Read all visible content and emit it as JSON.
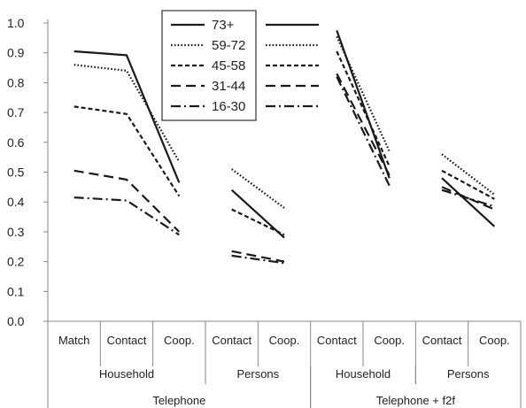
{
  "chart_data": {
    "type": "line",
    "title": "",
    "xlabel": "",
    "ylabel": "",
    "ylim": [
      0,
      1
    ],
    "ytick_step": 0.1,
    "y_tick_labels": [
      "0.0",
      "0.1",
      "0.2",
      "0.3",
      "0.4",
      "0.5",
      "0.6",
      "0.7",
      "0.8",
      "0.9",
      "1.0"
    ],
    "grid": "none",
    "legend_position": "top-center",
    "categories": [
      "Match",
      "Contact",
      "Coop.",
      "Contact",
      "Coop.",
      "Contact",
      "Coop.",
      "Contact",
      "Coop."
    ],
    "category_groups": [
      {
        "label": "Household",
        "span": [
          0,
          2
        ]
      },
      {
        "label": "Persons",
        "span": [
          3,
          4
        ]
      },
      {
        "label": "Household",
        "span": [
          5,
          6
        ]
      },
      {
        "label": "Persons",
        "span": [
          7,
          8
        ]
      }
    ],
    "super_groups": [
      {
        "label": "Telephone",
        "span": [
          0,
          4
        ]
      },
      {
        "label": "Telephone + f2f",
        "span": [
          5,
          8
        ]
      }
    ],
    "segments": [
      [
        0,
        1,
        2
      ],
      [
        3,
        4
      ],
      [
        5,
        6
      ],
      [
        7,
        8
      ]
    ],
    "series": [
      {
        "name": "73+",
        "style": "solid",
        "values": [
          0.905,
          0.892,
          0.465,
          0.44,
          0.28,
          0.975,
          0.48,
          0.48,
          0.318
        ]
      },
      {
        "name": "59-72",
        "style": "dotted",
        "values": [
          0.86,
          0.84,
          0.535,
          0.51,
          0.38,
          0.955,
          0.57,
          0.56,
          0.425
        ]
      },
      {
        "name": "45-58",
        "style": "dashed",
        "values": [
          0.72,
          0.695,
          0.42,
          0.375,
          0.29,
          0.905,
          0.52,
          0.505,
          0.41
        ]
      },
      {
        "name": "31-44",
        "style": "longdash",
        "values": [
          0.505,
          0.475,
          0.3,
          0.235,
          0.2,
          0.83,
          0.49,
          0.45,
          0.375
        ]
      },
      {
        "name": "16-30",
        "style": "dashdot",
        "values": [
          0.415,
          0.405,
          0.29,
          0.22,
          0.195,
          0.82,
          0.455,
          0.44,
          0.385
        ]
      }
    ]
  }
}
